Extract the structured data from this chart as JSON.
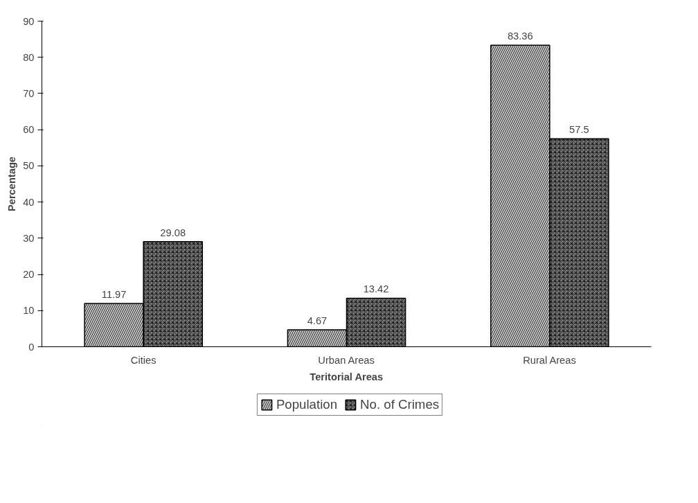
{
  "chart_data": {
    "type": "bar",
    "xlabel": "Teritorial Areas",
    "ylabel": "Percentage",
    "categories": [
      "Cities",
      "Urban Areas",
      "Rural Areas"
    ],
    "series": [
      {
        "name": "Population",
        "color": "#c8c8c8",
        "values": [
          11.97,
          4.67,
          83.36
        ]
      },
      {
        "name": "No. of Crimes",
        "color": "#8c8c8c",
        "values": [
          29.08,
          13.42,
          57.5
        ]
      }
    ],
    "ylim": [
      0,
      90
    ],
    "yticks": [
      0,
      10,
      20,
      30,
      40,
      50,
      60,
      70,
      80,
      90
    ],
    "grid": false,
    "legend": "bottom",
    "data_labels": true
  }
}
